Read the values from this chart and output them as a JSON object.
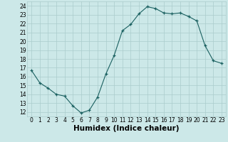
{
  "x": [
    0,
    1,
    2,
    3,
    4,
    5,
    6,
    7,
    8,
    9,
    10,
    11,
    12,
    13,
    14,
    15,
    16,
    17,
    18,
    19,
    20,
    21,
    22,
    23
  ],
  "y": [
    16.7,
    15.3,
    14.7,
    14.0,
    13.8,
    12.7,
    11.9,
    12.2,
    13.7,
    16.3,
    18.4,
    21.2,
    21.9,
    23.1,
    23.9,
    23.7,
    23.2,
    23.1,
    23.2,
    22.8,
    22.3,
    19.5,
    17.8,
    17.5
  ],
  "xlabel": "Humidex (Indice chaleur)",
  "xlim": [
    -0.5,
    23.5
  ],
  "ylim": [
    11.5,
    24.5
  ],
  "yticks": [
    12,
    13,
    14,
    15,
    16,
    17,
    18,
    19,
    20,
    21,
    22,
    23,
    24
  ],
  "xticks": [
    0,
    1,
    2,
    3,
    4,
    5,
    6,
    7,
    8,
    9,
    10,
    11,
    12,
    13,
    14,
    15,
    16,
    17,
    18,
    19,
    20,
    21,
    22,
    23
  ],
  "bg_color": "#cce8e8",
  "grid_color": "#aacccc",
  "line_color": "#1a6060",
  "marker_color": "#1a6060",
  "label_color": "#000000",
  "tick_fontsize": 5.5,
  "xlabel_fontsize": 7.5
}
